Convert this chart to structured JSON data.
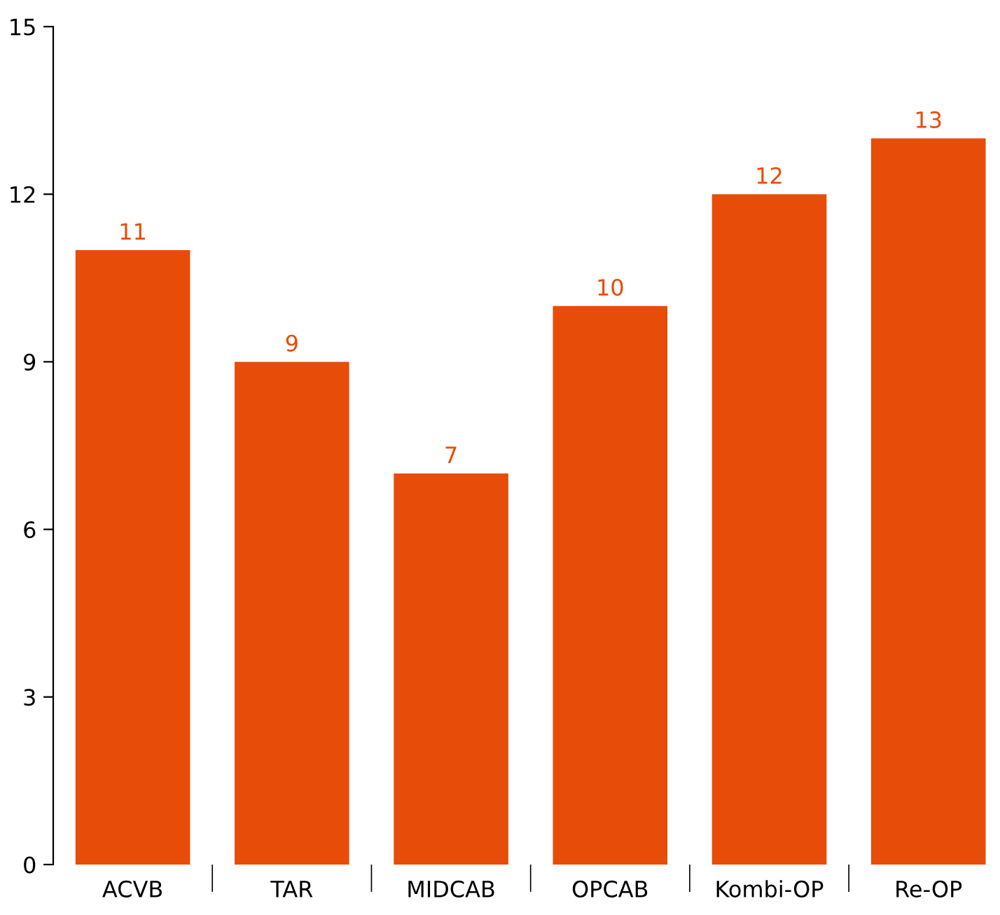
{
  "chart_data": {
    "type": "bar",
    "categories": [
      "ACVB",
      "TAR",
      "MIDCAB",
      "OPCAB",
      "Kombi-OP",
      "Re-OP"
    ],
    "values": [
      11,
      9,
      7,
      10,
      12,
      13
    ],
    "color": "#e84c09",
    "ylim": [
      0,
      15
    ],
    "yticks": [
      0,
      3,
      6,
      9,
      12,
      15
    ],
    "data_labels": true,
    "grid": false,
    "legend": false
  }
}
